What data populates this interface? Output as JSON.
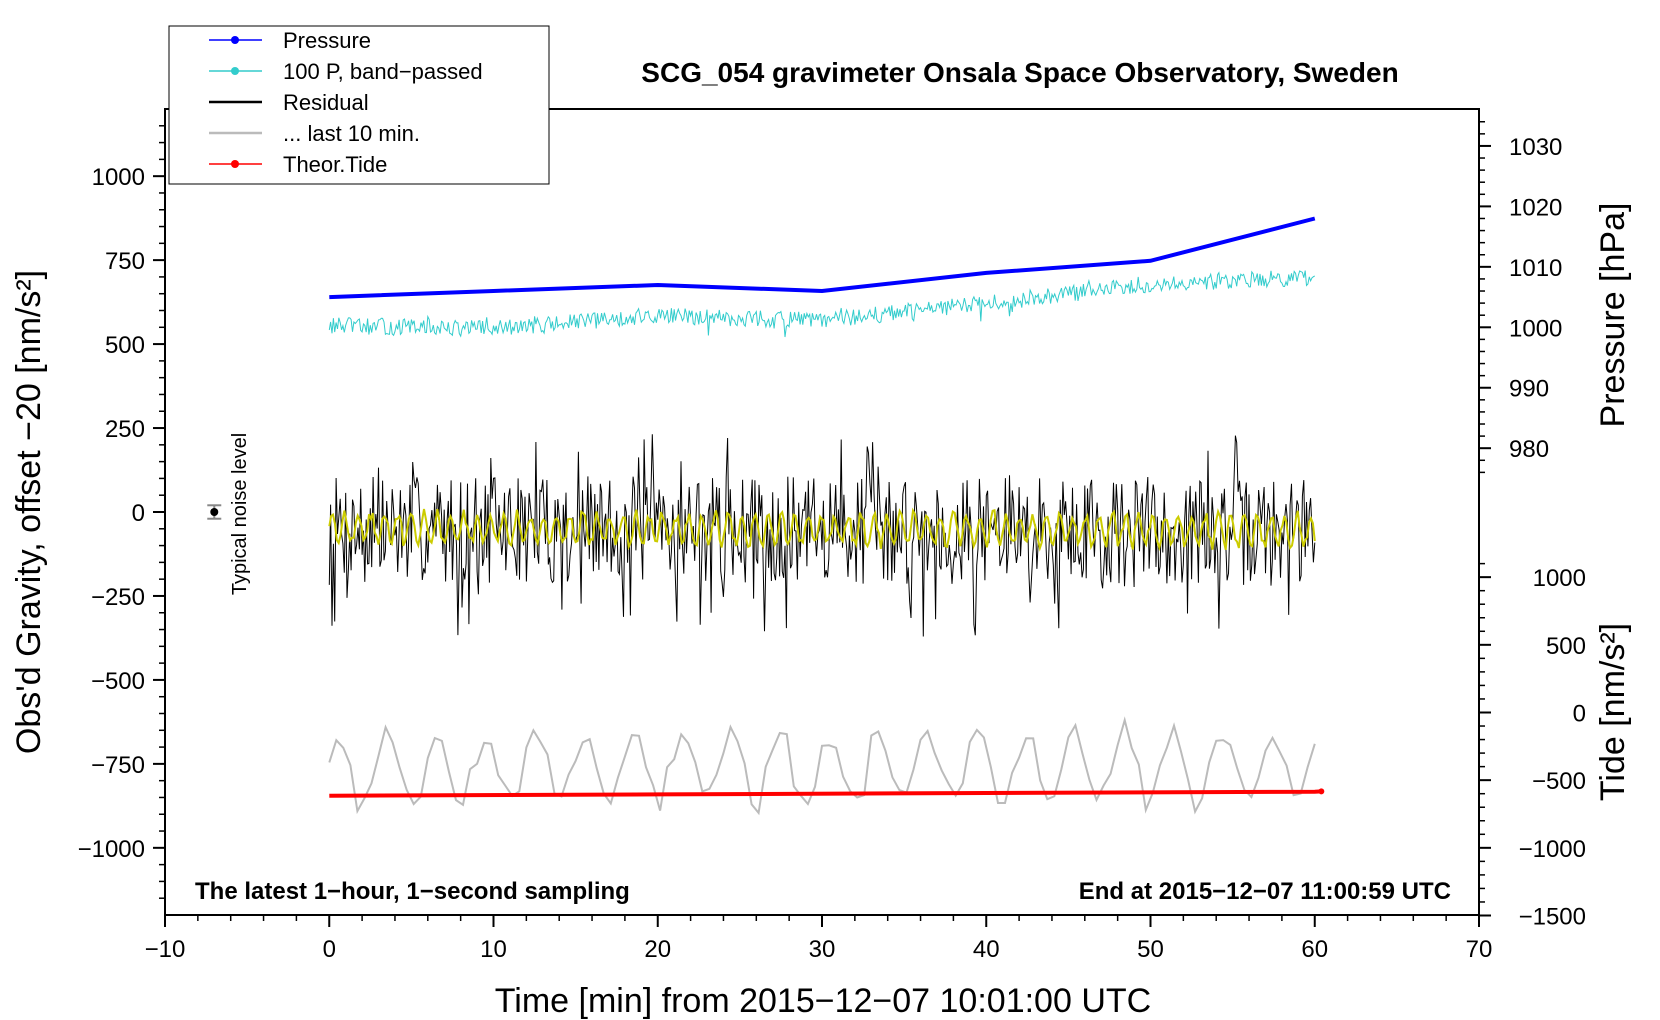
{
  "chart_data": {
    "type": "line",
    "title": "SCG_054 gravimeter Onsala Space Observatory, Sweden",
    "xlabel": "Time [min] from 2015−12−07 10:01:00 UTC",
    "ylabel_left": "Obs'd Gravity, offset −20 [nm/s²]",
    "ylabel_pressure": "Pressure [hPa]",
    "ylabel_tide": "Tide [nm/s²]",
    "xlim": [
      -10,
      70
    ],
    "ylim": [
      -1200,
      1200
    ],
    "x_ticks": [
      "−10",
      "0",
      "10",
      "20",
      "30",
      "40",
      "50",
      "60",
      "70"
    ],
    "x_tick_values": [
      -10,
      0,
      10,
      20,
      30,
      40,
      50,
      60,
      70
    ],
    "y_ticks": [
      "1000",
      "750",
      "500",
      "250",
      "0",
      "−250",
      "−500",
      "−750",
      "−1000"
    ],
    "y_tick_values": [
      1000,
      750,
      500,
      250,
      0,
      -250,
      -500,
      -750,
      -1000
    ],
    "pressure_axis": {
      "ticks": [
        "1030",
        "1020",
        "1010",
        "1000",
        "990",
        "980"
      ],
      "tick_values": [
        1030,
        1020,
        1010,
        1000,
        990,
        980
      ],
      "anchor_hpa": [
        1000,
        1010
      ],
      "anchor_left_units": [
        550,
        730
      ]
    },
    "tide_axis": {
      "ticks": [
        "1000",
        "500",
        "0",
        "−500",
        "−1000",
        "−1500"
      ],
      "tick_values": [
        1000,
        500,
        0,
        -500,
        -1000,
        -1500
      ],
      "anchor_tide": [
        0,
        -1000
      ],
      "anchor_left_units": [
        -597,
        -1000
      ]
    },
    "series": [
      {
        "name": "Pressure",
        "color": "#0000ff",
        "points": [
          [
            0,
            1005
          ],
          [
            10,
            1006
          ],
          [
            20,
            1007
          ],
          [
            30,
            1006
          ],
          [
            40,
            1009
          ],
          [
            50,
            1011
          ],
          [
            60,
            1018
          ]
        ]
      },
      {
        "name": "100 P, band−passed",
        "color": "#33cccc",
        "base": [
          [
            0,
            555
          ],
          [
            10,
            545
          ],
          [
            20,
            585
          ],
          [
            30,
            570
          ],
          [
            40,
            620
          ],
          [
            50,
            680
          ],
          [
            60,
            700
          ]
        ],
        "amplitude": 25
      },
      {
        "name": "Residual",
        "color": "#000000",
        "base": [
          [
            0,
            -50
          ],
          [
            60,
            -60
          ]
        ],
        "amplitude": 160
      },
      {
        "name": "... last 10 min.",
        "color": "#bbbbbb",
        "base": [
          [
            0,
            -760
          ],
          [
            60,
            -760
          ]
        ],
        "amplitude": 130
      },
      {
        "name": "Theor.Tide",
        "color": "#ff0000",
        "points": [
          [
            0,
            -615
          ],
          [
            20,
            -605
          ],
          [
            40,
            -595
          ],
          [
            60,
            -585
          ],
          [
            60.4,
            -583
          ]
        ]
      },
      {
        "name": "band-passed residual",
        "color": "#cccc00",
        "base": [
          [
            0,
            -50
          ],
          [
            60,
            -55
          ]
        ],
        "amplitude": 55
      }
    ],
    "noise_marker": {
      "x": -7,
      "y": 0,
      "error": 20
    },
    "legend": [
      {
        "label": "Pressure",
        "color": "#0000ff",
        "marker": true
      },
      {
        "label": "100 P, band−passed",
        "color": "#33cccc",
        "marker": true
      },
      {
        "label": "Residual",
        "color": "#000000",
        "marker": false
      },
      {
        "label": "... last 10 min.",
        "color": "#bbbbbb",
        "marker": false
      },
      {
        "label": "Theor.Tide",
        "color": "#ff0000",
        "marker": true
      }
    ],
    "legend_position": "top-left",
    "annotations": {
      "bottom_left": "The latest 1−hour, 1−second sampling",
      "bottom_right": "End at 2015−12−07 11:00:59 UTC",
      "noise": "Typical noise level"
    }
  }
}
